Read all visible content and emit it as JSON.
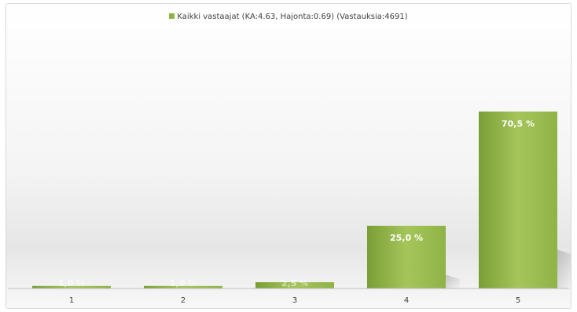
{
  "legend": {
    "label": "Kaikki vastaajat (KA:4.63, Hajonta:0.69) (Vastauksia:4691)"
  },
  "colors": {
    "bar": "#8fb347",
    "bar_dark": "#7a9e36",
    "bar_light": "#a5c55a"
  },
  "chart_data": {
    "type": "bar",
    "categories": [
      "1",
      "2",
      "3",
      "4",
      "5"
    ],
    "series": [
      {
        "name": "Kaikki vastaajat (KA:4.63, Hajonta:0.69) (Vastauksia:4691)",
        "values": [
          1.0,
          1.0,
          2.5,
          25.0,
          70.5
        ]
      }
    ],
    "data_labels": [
      "1,0 %",
      "1,0 %",
      "2,5 %",
      "25,0 %",
      "70,5 %"
    ],
    "ylim": [
      0,
      100
    ],
    "grid": false,
    "legend_position": "top"
  }
}
